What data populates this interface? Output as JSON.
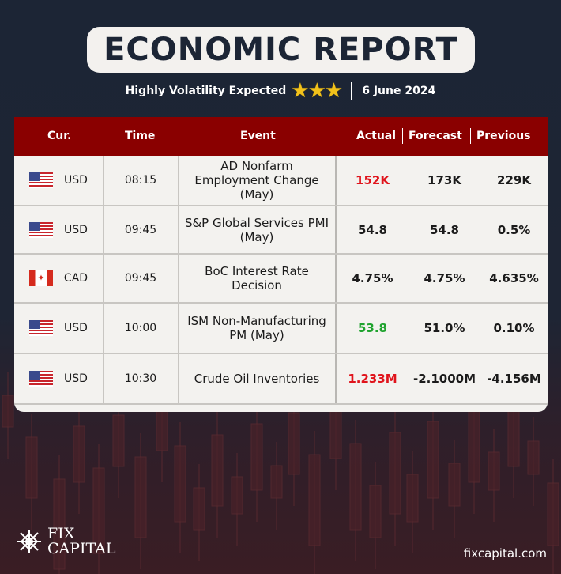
{
  "header": {
    "title": "ECONOMIC REPORT",
    "subtitle": "Highly Volatility Expected",
    "stars": "★★★",
    "star_count": 3,
    "date": "6 June 2024"
  },
  "table": {
    "columns": {
      "currency": "Cur.",
      "time": "Time",
      "event": "Event",
      "actual": "Actual",
      "forecast": "Forecast",
      "previous": "Previous"
    },
    "rows": [
      {
        "flag": "us-flag",
        "currency": "USD",
        "time": "08:15",
        "event": "AD Nonfarm Employment Change (May)",
        "actual": "152K",
        "actual_color": "#e0141c",
        "forecast": "173K",
        "previous": "229K"
      },
      {
        "flag": "us-flag",
        "currency": "USD",
        "time": "09:45",
        "event": "S&P Global Services PMI (May)",
        "actual": "54.8",
        "actual_color": "#1b1b1b",
        "forecast": "54.8",
        "previous": "0.5%"
      },
      {
        "flag": "canada-flag",
        "currency": "CAD",
        "time": "09:45",
        "event": "BoC Interest Rate Decision",
        "actual": "4.75%",
        "actual_color": "#1b1b1b",
        "forecast": "4.75%",
        "previous": "4.635%"
      },
      {
        "flag": "us-flag",
        "currency": "USD",
        "time": "10:00",
        "event": "ISM Non-Manufacturing PM (May)",
        "actual": "53.8",
        "actual_color": "#1fa32e",
        "forecast": "51.0%",
        "previous": "0.10%"
      },
      {
        "flag": "us-flag",
        "currency": "USD",
        "time": "10:30",
        "event": "Crude Oil Inventories",
        "actual": "1.233M",
        "actual_color": "#e0141c",
        "forecast": "-2.1000M",
        "previous": "-4.156M"
      }
    ]
  },
  "footer": {
    "logo_line1": "FIX",
    "logo_line2": "CAPITAL",
    "website": "fixcapital.com"
  },
  "colors": {
    "header_bg": "#8a0000",
    "background": "#1c2535",
    "negative": "#e0141c",
    "positive": "#1fa32e"
  }
}
